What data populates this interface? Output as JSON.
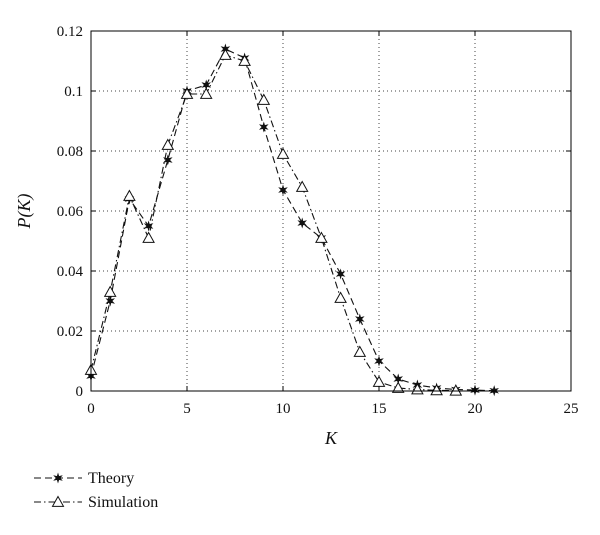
{
  "chart_data": {
    "type": "line",
    "xlabel": "K",
    "ylabel": "P(K)",
    "xlim": [
      0,
      25
    ],
    "ylim": [
      0,
      0.12
    ],
    "xticks": [
      0,
      5,
      10,
      15,
      20,
      25
    ],
    "yticks": [
      0,
      0.02,
      0.04,
      0.06,
      0.08,
      0.1,
      0.12
    ],
    "xtick_labels": [
      "0",
      "5",
      "10",
      "15",
      "20",
      "25"
    ],
    "ytick_labels": [
      "0",
      "0.02",
      "0.04",
      "0.06",
      "0.08",
      "0.1",
      "0.12"
    ],
    "grid": true,
    "legend_position": "bottom-left",
    "series": [
      {
        "name": "Theory",
        "line_style": "dashed",
        "marker": "star",
        "x": [
          0,
          1,
          2,
          3,
          4,
          5,
          6,
          7,
          8,
          9,
          10,
          11,
          12,
          13,
          14,
          15,
          16,
          17,
          18,
          19,
          20,
          21
        ],
        "y": [
          0.005,
          0.03,
          0.064,
          0.055,
          0.077,
          0.1,
          0.102,
          0.114,
          0.111,
          0.088,
          0.067,
          0.056,
          0.051,
          0.039,
          0.024,
          0.01,
          0.004,
          0.002,
          0.001,
          0.0005,
          0.0003,
          0.0001
        ]
      },
      {
        "name": "Simulation",
        "line_style": "dashdot",
        "marker": "triangle",
        "x": [
          0,
          1,
          2,
          3,
          4,
          5,
          6,
          7,
          8,
          9,
          10,
          11,
          12,
          13,
          14,
          15,
          16,
          17,
          18,
          19
        ],
        "y": [
          0.007,
          0.033,
          0.065,
          0.051,
          0.082,
          0.099,
          0.099,
          0.112,
          0.11,
          0.097,
          0.079,
          0.068,
          0.051,
          0.031,
          0.013,
          0.003,
          0.001,
          0.0005,
          0.0002,
          0.0001
        ]
      }
    ]
  }
}
